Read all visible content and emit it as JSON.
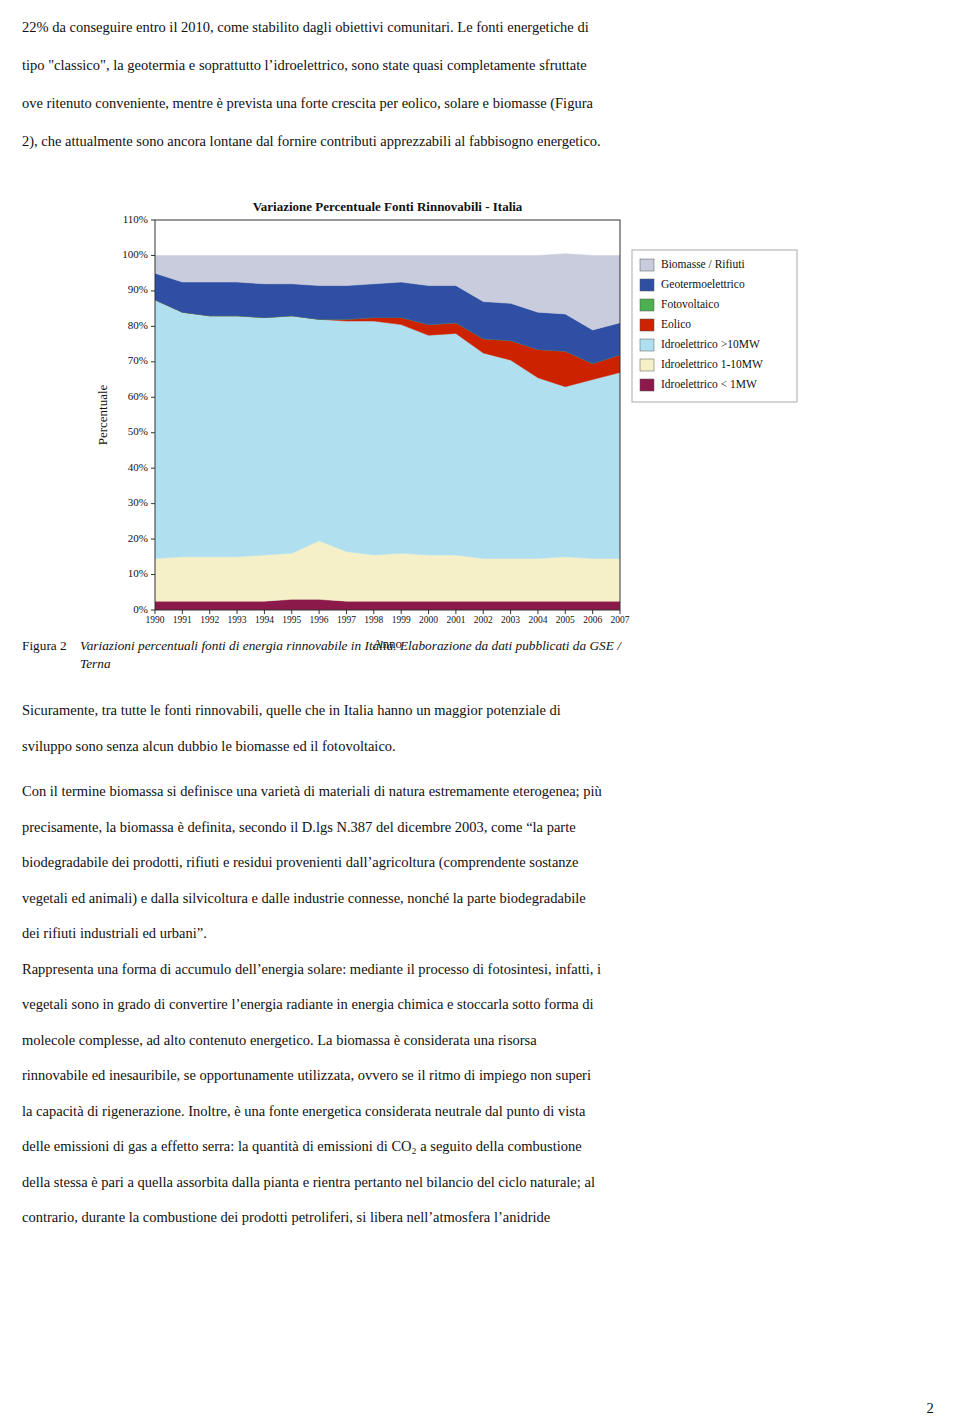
{
  "text_above": [
    "22% da conseguire entro il 2010, come stabilito dagli obiettivi comunitari. Le fonti energetiche di",
    "tipo \"classico\", la geotermia e soprattutto l’idroelettrico, sono state quasi completamente sfruttate",
    "ove ritenuto conveniente, mentre è prevista una forte crescita per eolico, solare e biomasse (Figura",
    "2), che attualmente sono ancora lontane dal fornire contributi apprezzabili al fabbisogno energetico."
  ],
  "caption": {
    "label": "Figura 2",
    "lines": [
      "Variazioni percentuali fonti di energia rinnovabile in Italia. Elaborazione da dati pubblicati da GSE /",
      "Terna"
    ]
  },
  "text_below": [
    "Sicuramente, tra tutte le fonti rinnovabili, quelle che in Italia hanno un maggior potenziale di",
    "sviluppo sono senza alcun dubbio le biomasse ed il fotovoltaico.",
    "Con il termine biomassa si definisce una varietà di materiali di natura estremamente eterogenea; più",
    "precisamente, la biomassa è definita, secondo il D.lgs N.387 del dicembre 2003, come “la parte",
    "biodegradabile dei prodotti, rifiuti e residui provenienti dall’agricoltura (comprendente sostanze",
    "vegetali ed animali) e dalla silvicoltura e dalle industrie connesse, nonché la parte biodegradabile",
    "dei rifiuti industriali ed urbani”.",
    "Rappresenta una forma di accumulo dell’energia solare: mediante il processo di fotosintesi, infatti, i",
    "vegetali sono in grado di convertire l’energia radiante in energia chimica e stoccarla sotto forma di",
    "molecole complesse, ad alto contenuto energetico. La biomassa è considerata una risorsa",
    "rinnovabile ed inesauribile, se opportunamente utilizzata, ovvero se il ritmo di impiego non superi",
    "la capacità di rigenerazione. Inoltre, è una fonte energetica considerata neutrale dal punto di vista",
    "delle emissioni di gas a effetto serra: la quantità di emissioni di CO₂ a seguito della combustione",
    "della stessa è pari a quella assorbita dalla pianta e rientra pertanto nel bilancio del ciclo naturale; al",
    "contrario, durante la combustione dei prodotti petroliferi, si libera nell’atmosfera l’anidride"
  ],
  "page_number": "2",
  "chart_data": {
    "type": "area",
    "stacked": true,
    "title": "Variazione Percentuale Fonti Rinnovabili - Italia",
    "xlabel": "Anno",
    "ylabel": "Percentuale",
    "x": [
      1990,
      1991,
      1992,
      1993,
      1994,
      1995,
      1996,
      1997,
      1998,
      1999,
      2000,
      2001,
      2002,
      2003,
      2004,
      2005,
      2006,
      2007
    ],
    "series": [
      {
        "name": "Idroelettrico < 1MW",
        "color": "#8B1A4A",
        "values": [
          2.5,
          2.5,
          2.5,
          2.5,
          2.5,
          3.0,
          3.0,
          2.5,
          2.5,
          2.5,
          2.5,
          2.5,
          2.5,
          2.5,
          2.5,
          2.5,
          2.5,
          2.5
        ]
      },
      {
        "name": "Idroelettrico 1-10MW",
        "color": "#F5F0C8",
        "values": [
          12.0,
          12.5,
          12.5,
          12.5,
          13.0,
          13.0,
          16.5,
          14.0,
          13.0,
          13.5,
          13.0,
          13.0,
          12.0,
          12.0,
          12.0,
          12.5,
          12.0,
          12.0
        ]
      },
      {
        "name": "Idroelettrico >10MW",
        "color": "#B0E0F0",
        "values": [
          73.0,
          69.0,
          68.0,
          68.0,
          67.0,
          67.0,
          62.5,
          65.0,
          66.0,
          64.5,
          62.0,
          62.5,
          58.0,
          56.0,
          51.0,
          48.0,
          50.5,
          52.5
        ]
      },
      {
        "name": "Eolico",
        "color": "#CC2200",
        "values": [
          0.0,
          0.0,
          0.0,
          0.0,
          0.0,
          0.0,
          0.0,
          0.5,
          1.0,
          2.0,
          3.0,
          3.0,
          4.0,
          5.5,
          8.0,
          10.0,
          4.5,
          5.0
        ]
      },
      {
        "name": "Fotovoltaico",
        "color": "#4CAF50",
        "values": [
          0.0,
          0.0,
          0.0,
          0.0,
          0.0,
          0.0,
          0.0,
          0.0,
          0.0,
          0.0,
          0.0,
          0.0,
          0.0,
          0.0,
          0.0,
          0.0,
          0.0,
          0.0
        ]
      },
      {
        "name": "Geotermoelettrico",
        "color": "#2E4FA3",
        "values": [
          7.5,
          8.5,
          9.5,
          9.5,
          9.5,
          9.0,
          9.5,
          9.5,
          9.5,
          10.0,
          11.0,
          10.5,
          10.5,
          10.5,
          10.5,
          10.5,
          9.5,
          9.0
        ]
      },
      {
        "name": "Biomasse / Rifiuti",
        "color": "#C8CCDD",
        "values": [
          5.0,
          7.5,
          7.5,
          7.5,
          8.0,
          8.0,
          8.5,
          8.5,
          8.0,
          7.5,
          8.5,
          8.5,
          13.0,
          13.5,
          16.0,
          17.0,
          21.0,
          19.0
        ]
      }
    ],
    "xlim": [
      1990,
      2007
    ],
    "xticks": [
      1990,
      1991,
      1992,
      1993,
      1994,
      1995,
      1996,
      1997,
      1998,
      1999,
      2000,
      2001,
      2002,
      2003,
      2004,
      2005,
      2006,
      2007
    ],
    "ylim": [
      0,
      110
    ],
    "yticks": [
      {
        "value": 0,
        "label": "0%"
      },
      {
        "value": 10,
        "label": "10%"
      },
      {
        "value": 20,
        "label": "20%"
      },
      {
        "value": 30,
        "label": "30%"
      },
      {
        "value": 40,
        "label": "40%"
      },
      {
        "value": 50,
        "label": "50%"
      },
      {
        "value": 60,
        "label": "60%"
      },
      {
        "value": 70,
        "label": "70%"
      },
      {
        "value": 80,
        "label": "80%"
      },
      {
        "value": 90,
        "label": "90%"
      },
      {
        "value": 100,
        "label": "100%"
      },
      {
        "value": 110,
        "label": "110%"
      }
    ],
    "grid": false,
    "legend": "right"
  }
}
